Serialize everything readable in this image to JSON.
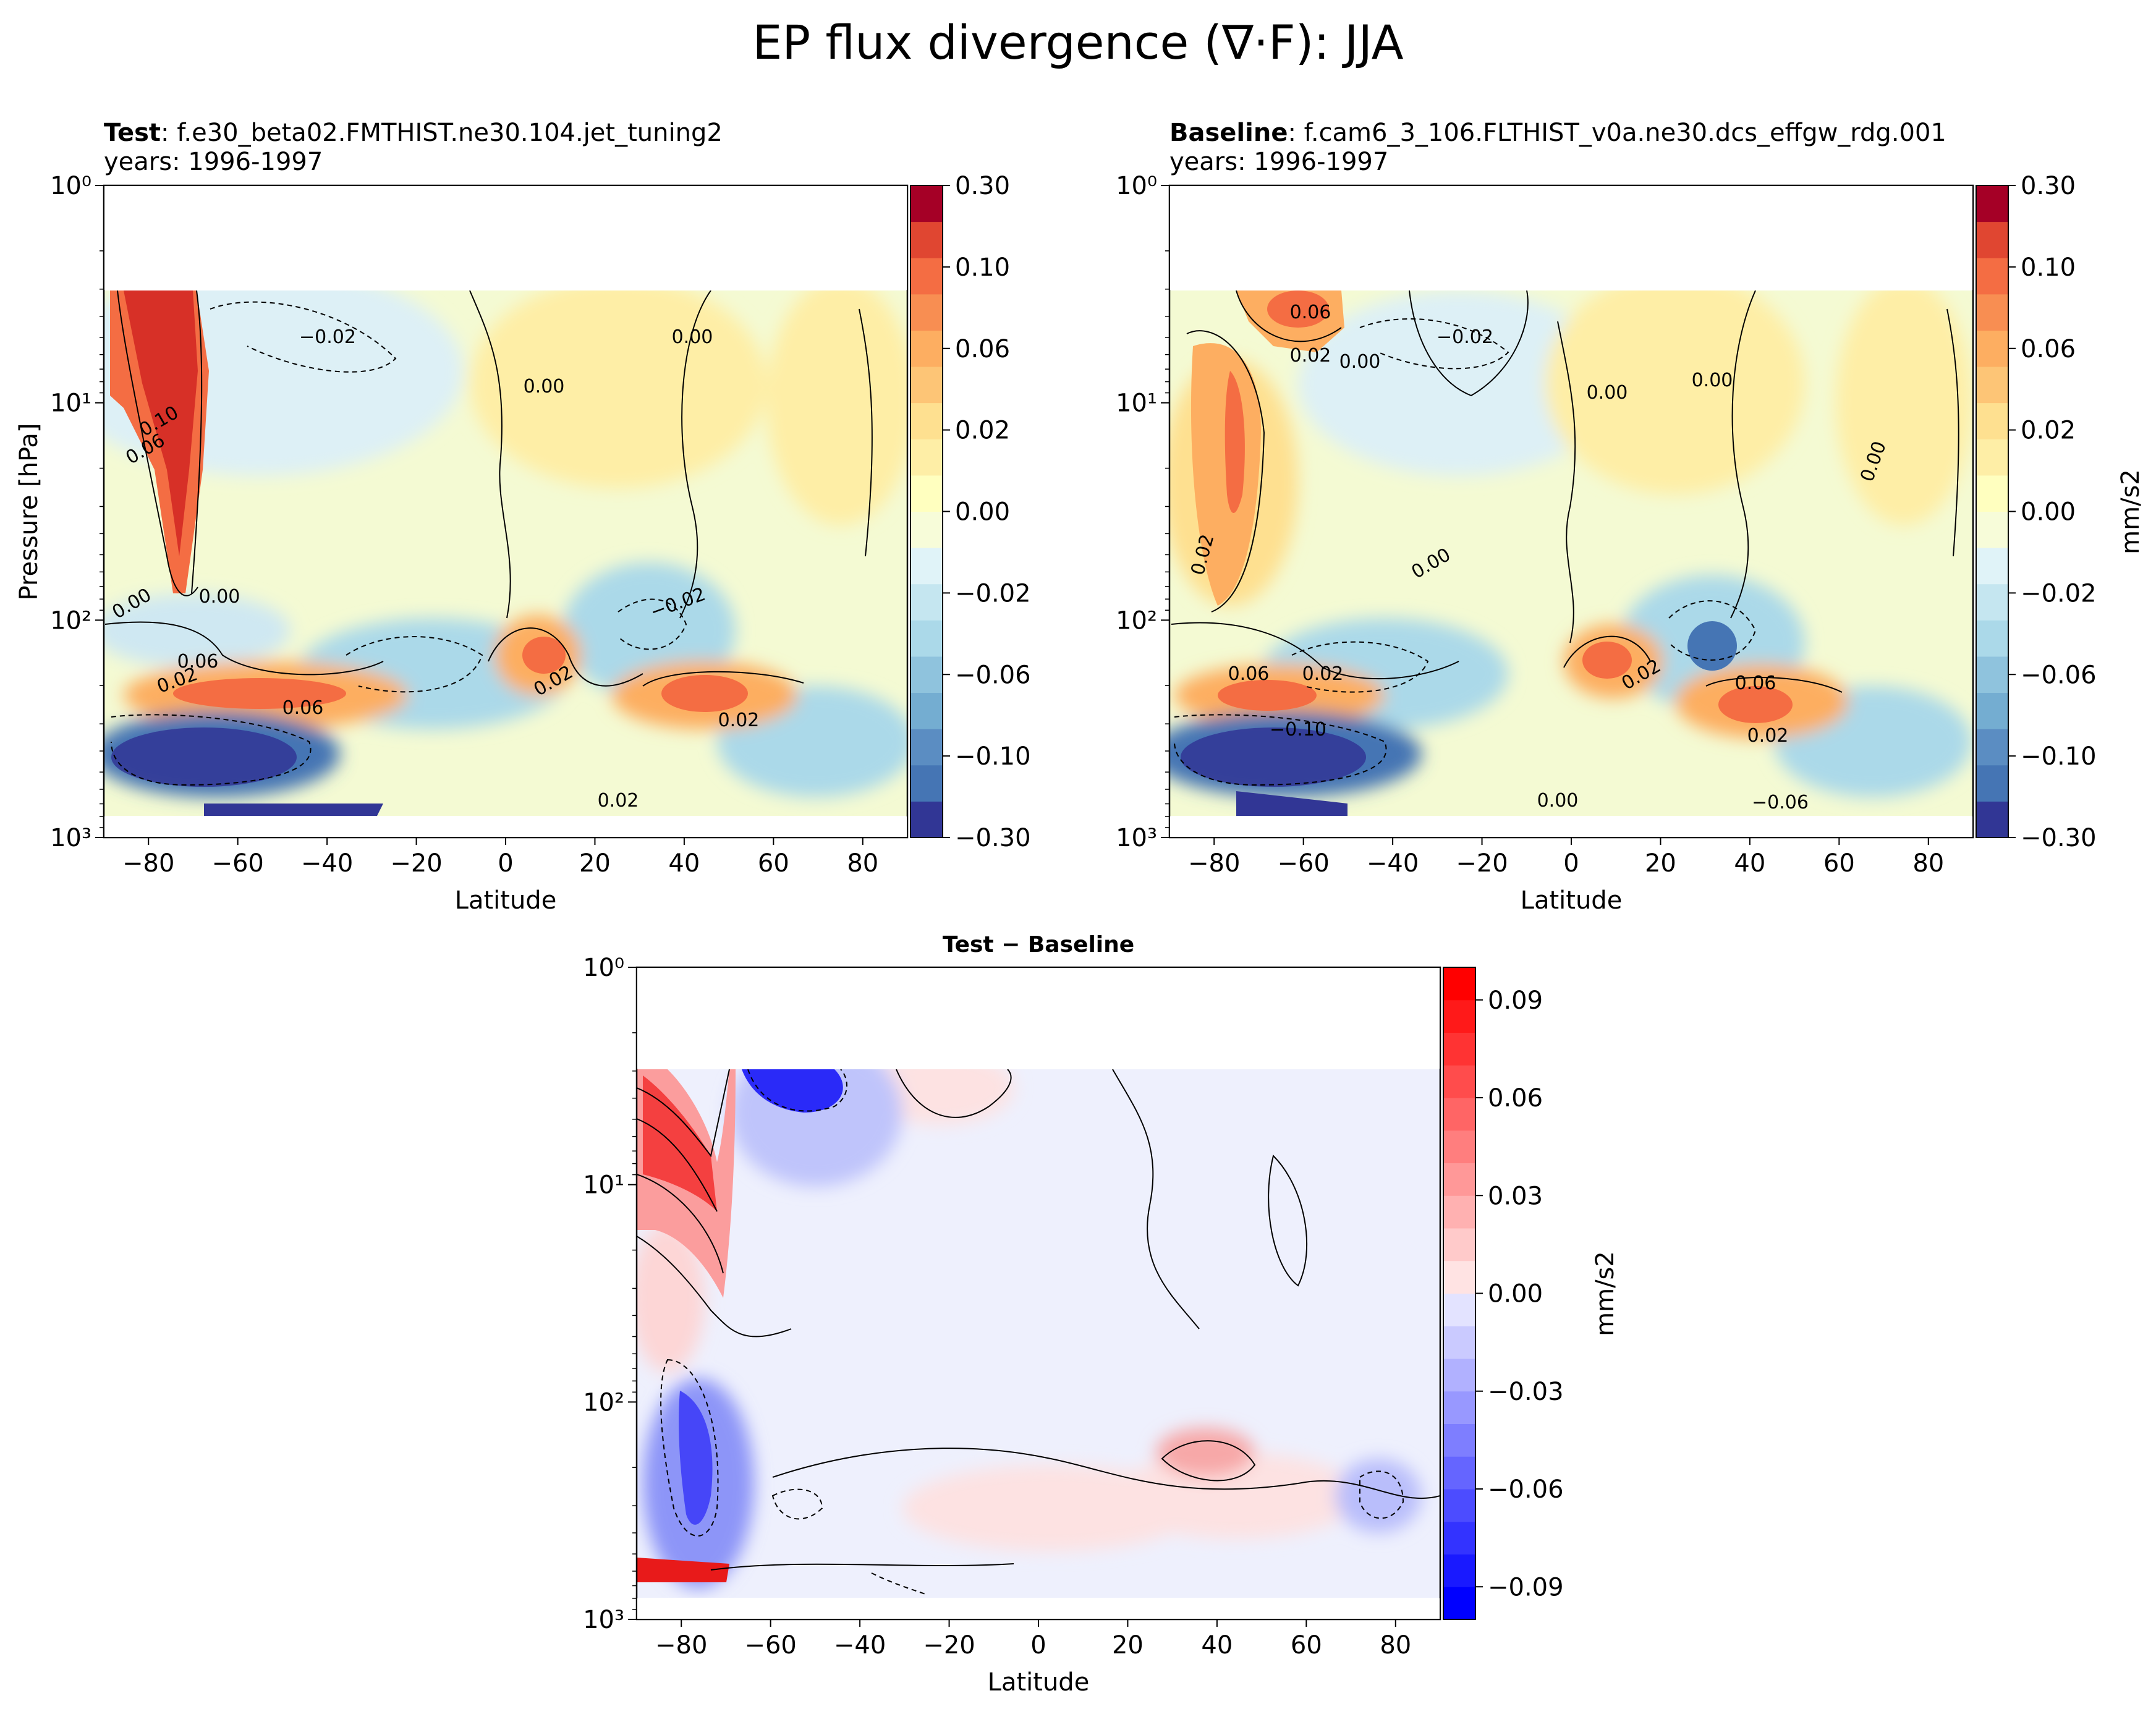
{
  "figure_title": "EP flux divergence (∇·F): JJA",
  "chart_data": [
    {
      "id": "test",
      "type": "filled-contour",
      "title_bold": "Test",
      "title_rest": ": f.e30_beta02.FMTHIST.ne30.104.jet_tuning2",
      "subtitle": "years: 1996-1997",
      "xlabel": "Latitude",
      "ylabel": "Pressure [hPa]",
      "xlim": [
        -90,
        90
      ],
      "ylim_hPa": [
        1000,
        1
      ],
      "yscale": "log",
      "x_ticks": [
        "−80",
        "−60",
        "−40",
        "−20",
        "0",
        "20",
        "40",
        "60",
        "80"
      ],
      "y_ticks": [
        "10⁰",
        "10¹",
        "10²",
        "10³"
      ],
      "colorbar_label": "",
      "colorbar_ticks": [
        "0.30",
        "0.10",
        "0.06",
        "0.02",
        "0.00",
        "−0.02",
        "−0.06",
        "−0.10",
        "−0.30"
      ],
      "contour_labels": [
        "−0.02",
        "0.00",
        "0.00",
        "0.10",
        "0.06",
        "0.00",
        "0.00",
        "0.06",
        "0.02",
        "−0.02",
        "0.02",
        "0.02",
        "0.02",
        "0.06"
      ],
      "features": [
        {
          "lat": [
            -90,
            -68
          ],
          "p": [
            3,
            80
          ],
          "value": 0.1
        },
        {
          "lat": [
            -90,
            -60
          ],
          "p": [
            40,
            60
          ],
          "value": 0.06
        },
        {
          "lat": [
            -90,
            -55
          ],
          "p": [
            300,
            550
          ],
          "value": -0.1
        },
        {
          "lat": [
            -15,
            20
          ],
          "p": [
            120,
            300
          ],
          "value": 0.06
        },
        {
          "lat": [
            25,
            65
          ],
          "p": [
            200,
            300
          ],
          "value": 0.06
        },
        {
          "lat": [
            -60,
            20
          ],
          "p": [
            3,
            30
          ],
          "value": -0.02
        }
      ]
    },
    {
      "id": "baseline",
      "type": "filled-contour",
      "title_bold": "Baseline",
      "title_rest": ": f.cam6_3_106.FLTHIST_v0a.ne30.dcs_effgw_rdg.001",
      "subtitle": "years: 1996-1997",
      "xlabel": "Latitude",
      "ylabel": "",
      "xlim": [
        -90,
        90
      ],
      "ylim_hPa": [
        1000,
        1
      ],
      "yscale": "log",
      "x_ticks": [
        "−80",
        "−60",
        "−40",
        "−20",
        "0",
        "20",
        "40",
        "60",
        "80"
      ],
      "y_ticks": [
        "10⁰",
        "10¹",
        "10²",
        "10³"
      ],
      "colorbar_label": "mm/s2",
      "colorbar_ticks": [
        "0.30",
        "0.10",
        "0.06",
        "0.02",
        "0.00",
        "−0.02",
        "−0.06",
        "−0.10",
        "−0.30"
      ],
      "contour_labels": [
        "0.06",
        "0.02",
        "0.00",
        "−0.02",
        "0.00",
        "0.00",
        "0.00",
        "0.02",
        "0.00",
        "0.02",
        "0.06",
        "0.02",
        "0.06",
        "0.02",
        "−0.10",
        "−0.06",
        "0.00"
      ],
      "features": [
        {
          "lat": [
            -80,
            -65
          ],
          "p": [
            5,
            80
          ],
          "value": 0.06
        },
        {
          "lat": [
            -70,
            -45
          ],
          "p": [
            3,
            6
          ],
          "value": 0.06
        },
        {
          "lat": [
            -90,
            -55
          ],
          "p": [
            300,
            550
          ],
          "value": -0.1
        },
        {
          "lat": [
            0,
            20
          ],
          "p": [
            150,
            300
          ],
          "value": 0.06
        },
        {
          "lat": [
            25,
            65
          ],
          "p": [
            200,
            350
          ],
          "value": 0.06
        },
        {
          "lat": [
            25,
            45
          ],
          "p": [
            110,
            200
          ],
          "value": -0.06
        }
      ]
    },
    {
      "id": "difference",
      "type": "filled-contour",
      "title": "Test − Baseline",
      "xlabel": "Latitude",
      "ylabel": "",
      "xlim": [
        -90,
        90
      ],
      "ylim_hPa": [
        1000,
        1
      ],
      "yscale": "log",
      "x_ticks": [
        "−80",
        "−60",
        "−40",
        "−20",
        "0",
        "20",
        "40",
        "60",
        "80"
      ],
      "y_ticks": [
        "10⁰",
        "10¹",
        "10²",
        "10³"
      ],
      "colorbar_label": "mm/s2",
      "colorbar_ticks": [
        "0.09",
        "0.06",
        "0.03",
        "0.00",
        "−0.03",
        "−0.06",
        "−0.09"
      ],
      "colorbar_range": [
        -0.1,
        0.1
      ],
      "features": [
        {
          "lat": [
            -90,
            -72
          ],
          "p": [
            3,
            40
          ],
          "value": 0.06
        },
        {
          "lat": [
            -70,
            -45
          ],
          "p": [
            3,
            6
          ],
          "value": -0.06
        },
        {
          "lat": [
            -85,
            -70
          ],
          "p": [
            100,
            400
          ],
          "value": -0.06
        },
        {
          "lat": [
            25,
            40
          ],
          "p": [
            150,
            250
          ],
          "value": 0.03
        },
        {
          "lat": [
            70,
            85
          ],
          "p": [
            250,
            400
          ],
          "value": -0.03
        }
      ]
    }
  ]
}
